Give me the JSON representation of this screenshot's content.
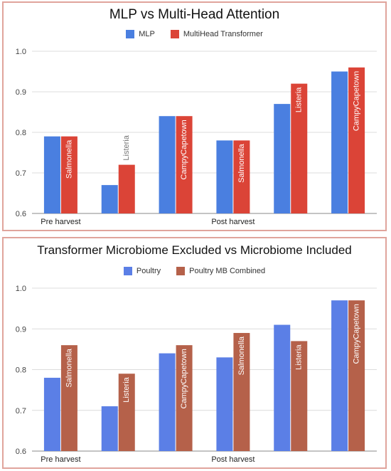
{
  "chart_data": [
    {
      "type": "bar",
      "title": "MLP vs Multi-Head Attention",
      "xlabel": "",
      "ylabel": "",
      "ylim": [
        0.6,
        1.0
      ],
      "yticks": [
        "0.6",
        "0.7",
        "0.8",
        "0.9",
        "1.0"
      ],
      "grid": true,
      "legend_position": "top",
      "stage_labels": [
        "Pre harvest",
        "Post harvest"
      ],
      "categories": [
        "Salmonella",
        "Listeria",
        "CampyCapetown",
        "Salmonella",
        "Listeria",
        "CampyCapetown"
      ],
      "series": [
        {
          "name": "MLP",
          "color": "#4a7fe0",
          "values": [
            0.79,
            0.67,
            0.84,
            0.78,
            0.87,
            0.95
          ]
        },
        {
          "name": "MultiHead Transformer",
          "color": "#db4437",
          "values": [
            0.79,
            0.72,
            0.84,
            0.78,
            0.92,
            0.96
          ]
        }
      ]
    },
    {
      "type": "bar",
      "title": "Transformer Microbiome Excluded vs Microbiome Included",
      "xlabel": "",
      "ylabel": "",
      "ylim": [
        0.6,
        1.0
      ],
      "yticks": [
        "0.6",
        "0.7",
        "0.8",
        "0.9",
        "1.0"
      ],
      "grid": true,
      "legend_position": "top",
      "stage_labels": [
        "Pre harvest",
        "Post harvest"
      ],
      "categories": [
        "Salmonella",
        "Listeria",
        "CampyCapetown",
        "Salmonella",
        "Listeria",
        "CampyCapetown"
      ],
      "series": [
        {
          "name": "Poultry",
          "color": "#5b7fe6",
          "values": [
            0.78,
            0.71,
            0.84,
            0.83,
            0.91,
            0.97
          ]
        },
        {
          "name": "Poultry MB Combined",
          "color": "#b5614a",
          "values": [
            0.86,
            0.79,
            0.86,
            0.89,
            0.87,
            0.97
          ]
        }
      ]
    }
  ]
}
